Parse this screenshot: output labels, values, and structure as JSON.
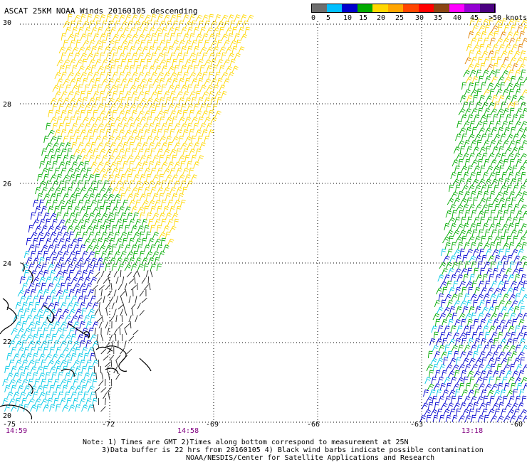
{
  "title": "ASCAT 25KM NOAA Winds 20160105 descending",
  "legend": {
    "colors": [
      "#6e6e6e",
      "#00bfff",
      "#0000cd",
      "#00aa00",
      "#ffd700",
      "#ffa500",
      "#ff4500",
      "#ff0000",
      "#8b4513",
      "#ff00ff",
      "#9400d3",
      "#4b0082"
    ],
    "labels": [
      "0",
      "5",
      "10",
      "15",
      "20",
      "25",
      "30",
      "35",
      "40",
      "45",
      ">50 knots"
    ]
  },
  "lat_labels": [
    "30",
    "28",
    "26",
    "24",
    "22",
    "20"
  ],
  "lon_labels": [
    "-75",
    "-72",
    "-69",
    "-66",
    "-63",
    "-60"
  ],
  "times": [
    "14:59",
    "14:58",
    "13:18"
  ],
  "notes": [
    "Note: 1) Times are GMT 2)Times along bottom correspond to measurement at 25N",
    "3)Data buffer is 22 hrs from 20160105 4) Black wind barbs indicate possible contamination",
    "NOAA/NESDIS/Center for Satellite Applications and Research"
  ]
}
